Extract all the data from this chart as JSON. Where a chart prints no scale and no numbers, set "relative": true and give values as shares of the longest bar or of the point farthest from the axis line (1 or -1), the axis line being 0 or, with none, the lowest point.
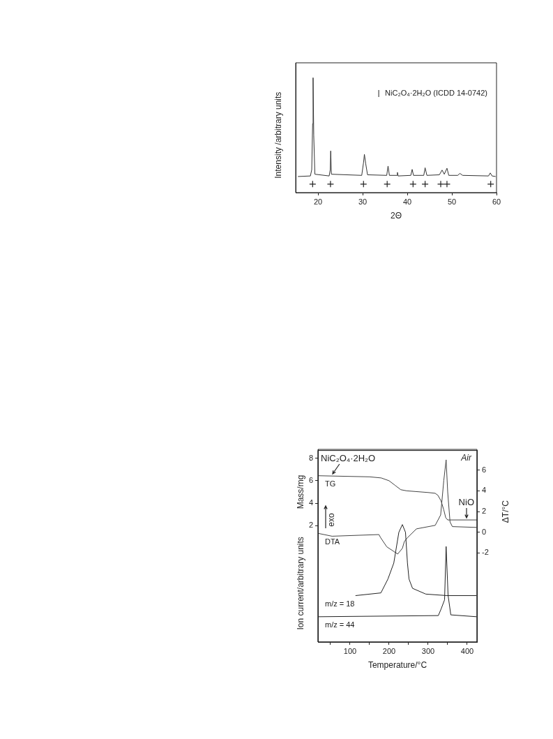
{
  "chart_data": [
    {
      "type": "line",
      "relative": true,
      "xlabel": "2Θ",
      "ylabel": "Intensity /arbitrary units",
      "xlim": [
        15,
        60
      ],
      "xticks": [
        20,
        30,
        40,
        50,
        60
      ],
      "legend": "top right",
      "series": [
        {
          "type": "line",
          "color": "#333333",
          "marker": "none",
          "x": [
            15.5,
            18.3,
            18.6,
            18.8,
            18.9,
            19.05,
            19.3,
            22.5,
            22.75,
            22.85,
            23.0,
            29.8,
            30.2,
            30.4,
            30.7,
            31.1,
            35.4,
            35.7,
            36.0,
            37.7,
            37.8,
            37.95,
            40.8,
            41.1,
            41.4,
            43.7,
            44.0,
            44.4,
            47.2,
            47.8,
            48.3,
            48.9,
            49.3,
            51.3,
            51.8,
            52.4,
            58.2,
            58.6,
            59.0,
            59.8
          ],
          "values": [
            0.14,
            0.145,
            0.2,
            0.6,
            1.0,
            0.5,
            0.16,
            0.145,
            0.2,
            0.363,
            0.16,
            0.15,
            0.26,
            0.333,
            0.25,
            0.155,
            0.15,
            0.231,
            0.15,
            0.15,
            0.176,
            0.145,
            0.15,
            0.202,
            0.15,
            0.15,
            0.216,
            0.15,
            0.155,
            0.196,
            0.16,
            0.212,
            0.15,
            0.15,
            0.167,
            0.15,
            0.145,
            0.171,
            0.145,
            0.14
          ]
        },
        {
          "type": "scatter",
          "name": "NiC₂O₄·2H₂O (ICDD 14-0742)",
          "color": "#222222",
          "marker": "cross",
          "x": [
            18.8,
            22.8,
            30.2,
            35.5,
            41.3,
            44.0,
            47.5,
            48.9,
            58.7
          ],
          "values": [
            0.074,
            0.074,
            0.074,
            0.074,
            0.074,
            0.074,
            0.074,
            0.074,
            0.074
          ]
        }
      ]
    },
    {
      "type": "line",
      "xlabel": "Temperature/°C",
      "ylabel": "Mass/mg",
      "y2label": "ΔT/°C",
      "xlim": [
        18,
        425
      ],
      "xticks": [
        {
          "value": 50,
          "label": null
        },
        100,
        {
          "value": 150,
          "label": null
        },
        200,
        {
          "value": 250,
          "label": null
        },
        300,
        {
          "value": 350,
          "label": null
        },
        400
      ],
      "ylim": [
        -8.4,
        8.7
      ],
      "yticks": [
        2,
        4,
        6,
        8
      ],
      "y2lim": [
        -10.6,
        7.9
      ],
      "y2ticks": [
        -2,
        0,
        2,
        4,
        6
      ],
      "annotations": [
        "Air",
        "exo",
        {
          "text": "NiC₂O₄·2H₂O",
          "x": 56,
          "y": 6.45
        },
        {
          "text": "NiO",
          "x": 398,
          "y": 2.5
        }
      ],
      "series": [
        {
          "name": "TG",
          "color": "#444444",
          "x": [
            18,
            150,
            180,
            200,
            215,
            230,
            245,
            300,
            318,
            325,
            333,
            340,
            345,
            350,
            425
          ],
          "values": [
            6.45,
            6.35,
            6.25,
            6.0,
            5.6,
            5.2,
            5.1,
            4.95,
            4.88,
            4.7,
            4.2,
            3.4,
            2.7,
            2.5,
            2.5
          ]
        },
        {
          "name": "DTA",
          "axis": "y2",
          "color": "#444444",
          "x": [
            18,
            54,
            174,
            178,
            194,
            222,
            234,
            239,
            246,
            270,
            318,
            332,
            340,
            346,
            350,
            356,
            362,
            424
          ],
          "values": [
            -0.1,
            -0.38,
            -0.22,
            -0.5,
            -1.4,
            -2.1,
            -1.55,
            -0.9,
            -0.56,
            0.33,
            0.67,
            1.67,
            5.0,
            7.0,
            3.9,
            1.0,
            0.55,
            0.47
          ]
        }
      ]
    },
    {
      "type": "line",
      "relative": true,
      "ylabel": "Ion current/arbitrary units",
      "xlim": [
        18,
        425
      ],
      "xticks": [
        {
          "value": 50,
          "label": null
        },
        100,
        {
          "value": 150,
          "label": null
        },
        200,
        {
          "value": 250,
          "label": null
        },
        300,
        {
          "value": 350,
          "label": null
        },
        400
      ],
      "tick_labels": false,
      "series": [
        {
          "name": "m/z = 18",
          "color": "#222222",
          "x": [
            114,
            179,
            197,
            212,
            225,
            234,
            242,
            247,
            251,
            260,
            294,
            348,
            424
          ],
          "values": [
            0.395,
            0.418,
            0.536,
            0.672,
            0.934,
            1.0,
            0.934,
            0.672,
            0.536,
            0.457,
            0.408,
            0.395,
            0.395
          ]
        },
        {
          "name": "m/z = 44",
          "color": "#222222",
          "x": [
            18,
            326,
            333,
            342,
            346,
            351,
            358,
            424
          ],
          "values": [
            0.215,
            0.225,
            0.28,
            0.359,
            0.813,
            0.398,
            0.231,
            0.215
          ]
        }
      ]
    }
  ]
}
